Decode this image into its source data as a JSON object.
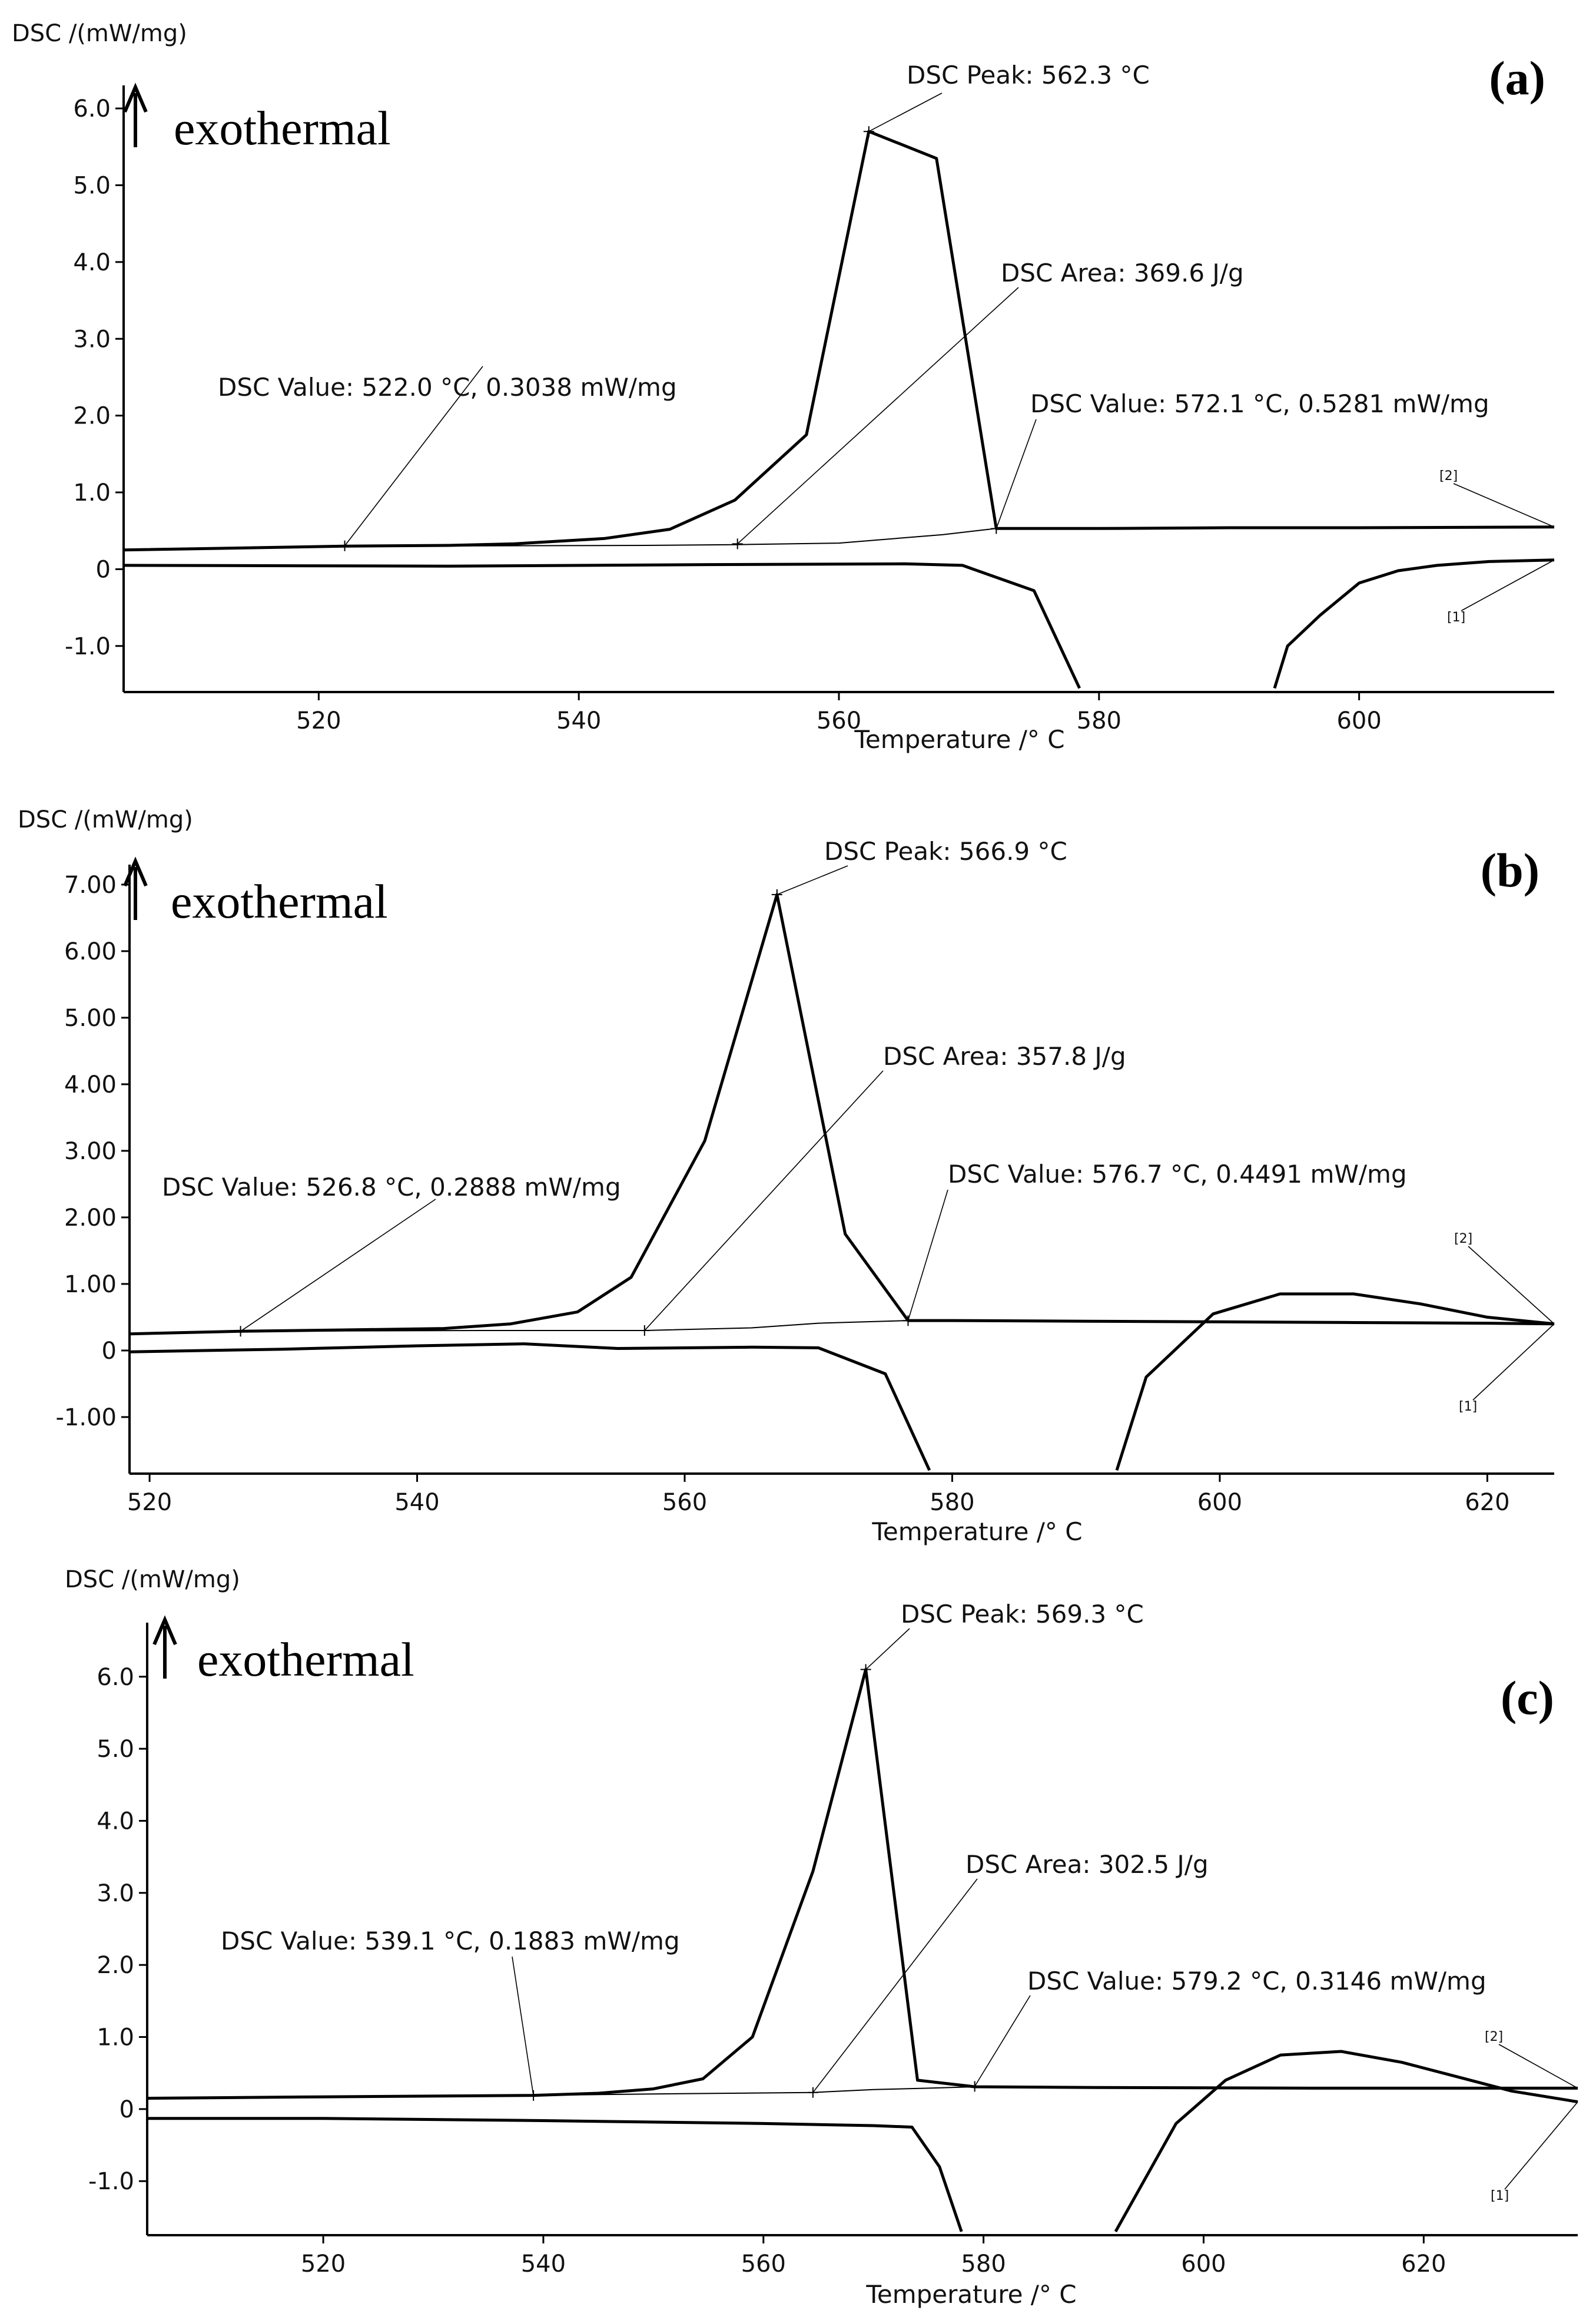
{
  "chart_data": [
    {
      "type": "line",
      "panel_label": "(a)",
      "ylabel": "DSC /(mW/mg)",
      "xlabel": "Temperature /°  C",
      "exothermal_label": "exothermal",
      "xlim": [
        505,
        615
      ],
      "ylim": [
        -1.6,
        6.3
      ],
      "xticks": [
        520,
        540,
        560,
        580,
        600
      ],
      "xtick_labels": [
        "520",
        "540",
        "560",
        "580",
        "600"
      ],
      "yticks": [
        6,
        5,
        4,
        3,
        2,
        1,
        0,
        -1
      ],
      "ytick_labels": [
        "6.0",
        "5.0",
        "4.0",
        "3.0",
        "2.0",
        "1.0",
        "0",
        "-1.0"
      ],
      "series": [
        {
          "name": "[2]",
          "x": [
            505,
            522,
            530,
            535,
            542,
            547,
            552,
            557.5,
            562.3,
            567.5,
            572.1,
            580,
            590,
            600,
            615
          ],
          "y": [
            0.25,
            0.3,
            0.31,
            0.33,
            0.4,
            0.52,
            0.9,
            1.75,
            5.7,
            5.35,
            0.53,
            0.53,
            0.54,
            0.54,
            0.55
          ]
        },
        {
          "name": "[1]",
          "x": [
            505,
            530,
            550,
            565,
            569.5,
            575,
            578.5
          ],
          "y": [
            0.05,
            0.04,
            0.06,
            0.07,
            0.05,
            -0.28,
            -1.55
          ]
        },
        {
          "name": "[1]",
          "x": [
            593.5,
            594.5,
            597,
            600,
            603,
            606,
            610,
            615
          ],
          "y": [
            -1.55,
            -1.0,
            -0.6,
            -0.18,
            -0.02,
            0.05,
            0.1,
            0.12
          ]
        },
        {
          "name": "baseline",
          "x": [
            522,
            545,
            552,
            560,
            568,
            572.1
          ],
          "y": [
            0.3,
            0.31,
            0.32,
            0.34,
            0.45,
            0.53
          ]
        }
      ],
      "annotations": [
        {
          "text": "DSC Peak: 562.3 °C",
          "x": 562.3,
          "y": 5.7
        },
        {
          "text": "DSC Area: 369.6 J/g",
          "x": 552.2,
          "y": 0.33
        },
        {
          "text": "DSC Value: 522.0 °C, 0.3038 mW/mg",
          "x": 522.0,
          "y": 0.3038
        },
        {
          "text": "DSC Value: 572.1 °C, 0.5281 mW/mg",
          "x": 572.1,
          "y": 0.5281
        }
      ],
      "curve_tags": [
        {
          "text": "[2]",
          "x": 615,
          "y": 0.55
        },
        {
          "text": "[1]",
          "x": 615,
          "y": 0.12
        }
      ]
    },
    {
      "type": "line",
      "panel_label": "(b)",
      "ylabel": "DSC /(mW/mg)",
      "xlabel": "Temperature /°  C",
      "exothermal_label": "exothermal",
      "xlim": [
        518.5,
        625
      ],
      "ylim": [
        -1.85,
        7.3
      ],
      "xticks": [
        520,
        540,
        560,
        580,
        600,
        620
      ],
      "xtick_labels": [
        "520",
        "540",
        "560",
        "580",
        "600",
        "620"
      ],
      "yticks": [
        7,
        6,
        5,
        4,
        3,
        2,
        1,
        0,
        -1
      ],
      "ytick_labels": [
        "7.00",
        "6.00",
        "5.00",
        "4.00",
        "3.00",
        "2.00",
        "1.00",
        "0",
        "-1.00"
      ],
      "series": [
        {
          "name": "[2]",
          "x": [
            518.5,
            526.8,
            535,
            542,
            547,
            552,
            556,
            561.5,
            566.9,
            572,
            576.7,
            580,
            590,
            600,
            610,
            620,
            625
          ],
          "y": [
            0.25,
            0.29,
            0.31,
            0.33,
            0.4,
            0.58,
            1.1,
            3.15,
            6.85,
            1.75,
            0.45,
            0.45,
            0.44,
            0.43,
            0.42,
            0.41,
            0.4
          ]
        },
        {
          "name": "[1]",
          "x": [
            518.5,
            530,
            540,
            548,
            550,
            555,
            565,
            570,
            575,
            578.3
          ],
          "y": [
            -0.02,
            0.02,
            0.07,
            0.1,
            0.08,
            0.03,
            0.05,
            0.04,
            -0.35,
            -1.8
          ]
        },
        {
          "name": "[1]",
          "x": [
            592.3,
            594.5,
            599.5,
            604.5,
            610,
            615,
            620,
            625
          ],
          "y": [
            -1.8,
            -0.4,
            0.55,
            0.85,
            0.85,
            0.7,
            0.5,
            0.4
          ]
        },
        {
          "name": "baseline",
          "x": [
            526.8,
            545,
            557,
            565,
            570,
            576.7
          ],
          "y": [
            0.29,
            0.3,
            0.3,
            0.34,
            0.41,
            0.45
          ]
        }
      ],
      "annotations": [
        {
          "text": "DSC Peak: 566.9 °C",
          "x": 566.9,
          "y": 6.85
        },
        {
          "text": "DSC Area: 357.8 J/g",
          "x": 557.0,
          "y": 0.3
        },
        {
          "text": "DSC Value: 526.8 °C, 0.2888 mW/mg",
          "x": 526.8,
          "y": 0.2888
        },
        {
          "text": "DSC Value: 576.7 °C, 0.4491 mW/mg",
          "x": 576.7,
          "y": 0.4491
        }
      ],
      "curve_tags": [
        {
          "text": "[2]",
          "x": 625,
          "y": 0.4
        },
        {
          "text": "[1]",
          "x": 625,
          "y": 0.4
        }
      ]
    },
    {
      "type": "line",
      "panel_label": "(c)",
      "ylabel": "DSC /(mW/mg)",
      "xlabel": "Temperature /°  C",
      "exothermal_label": "exothermal",
      "xlim": [
        504,
        634
      ],
      "ylim": [
        -1.75,
        6.75
      ],
      "xticks": [
        520,
        540,
        560,
        580,
        600,
        620
      ],
      "xtick_labels": [
        "520",
        "540",
        "560",
        "580",
        "600",
        "620"
      ],
      "yticks": [
        6,
        5,
        4,
        3,
        2,
        1,
        0,
        -1
      ],
      "ytick_labels": [
        "6.0",
        "5.0",
        "4.0",
        "3.0",
        "2.0",
        "1.0",
        "0",
        "-1.0"
      ],
      "series": [
        {
          "name": "[2]",
          "x": [
            504,
            520,
            539.1,
            545,
            550,
            554.5,
            559,
            564.5,
            569.3,
            574,
            579.2,
            590,
            610,
            634
          ],
          "y": [
            0.15,
            0.17,
            0.19,
            0.22,
            0.28,
            0.42,
            1.0,
            3.3,
            6.1,
            0.4,
            0.31,
            0.3,
            0.29,
            0.29
          ]
        },
        {
          "name": "[1]",
          "x": [
            504,
            520,
            540,
            560,
            570,
            573.5,
            576,
            578
          ],
          "y": [
            -0.13,
            -0.13,
            -0.16,
            -0.2,
            -0.23,
            -0.25,
            -0.8,
            -1.7
          ]
        },
        {
          "name": "[1]",
          "x": [
            592,
            597.5,
            602,
            607,
            612.5,
            618,
            623,
            628,
            634
          ],
          "y": [
            -1.7,
            -0.2,
            0.4,
            0.75,
            0.8,
            0.65,
            0.45,
            0.25,
            0.1
          ]
        },
        {
          "name": "baseline",
          "x": [
            539.1,
            550,
            564.5,
            570,
            575,
            579.2
          ],
          "y": [
            0.19,
            0.21,
            0.23,
            0.27,
            0.29,
            0.31
          ]
        }
      ],
      "annotations": [
        {
          "text": "DSC Peak: 569.3 °C",
          "x": 569.3,
          "y": 6.1
        },
        {
          "text": "DSC Area: 302.5 J/g",
          "x": 564.5,
          "y": 0.23
        },
        {
          "text": "DSC Value: 539.1 °C, 0.1883 mW/mg",
          "x": 539.1,
          "y": 0.1883
        },
        {
          "text": "DSC Value: 579.2 °C, 0.3146 mW/mg",
          "x": 579.2,
          "y": 0.3146
        }
      ],
      "curve_tags": [
        {
          "text": "[2]",
          "x": 634,
          "y": 0.29
        },
        {
          "text": "[1]",
          "x": 634,
          "y": 0.1
        }
      ]
    }
  ]
}
